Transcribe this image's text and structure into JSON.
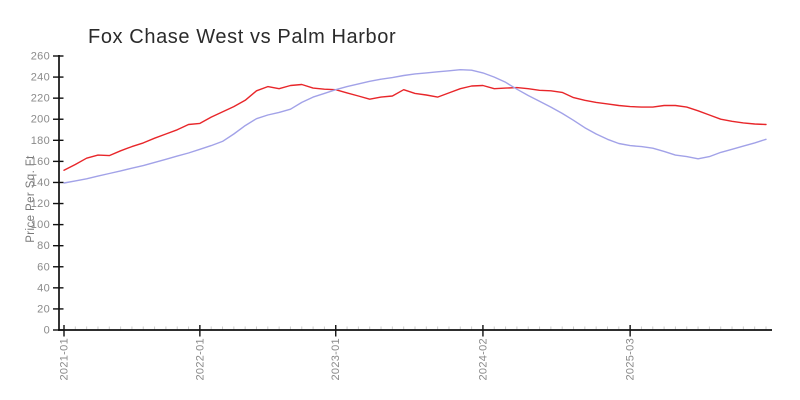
{
  "chart": {
    "title": "Fox Chase West vs Palm Harbor",
    "y_axis_label": "Price Per Sq. Ft"
  },
  "colors": {
    "axis": "#111111",
    "tick_label": "#8a8a8a",
    "minor_tick": "#cccccc",
    "title": "#2b2b2b",
    "ylabel_text": "#7a7a7a",
    "background": "#ffffff",
    "series_red": "#e8262a",
    "series_blue": "#a2a2e8"
  },
  "chart_data": {
    "type": "line",
    "title": "Fox Chase West vs Palm Harbor",
    "xlabel": "",
    "ylabel": "Price Per Sq. Ft",
    "ylim": [
      0,
      260
    ],
    "y_ticks": [
      0,
      20,
      40,
      60,
      80,
      100,
      120,
      140,
      160,
      180,
      200,
      220,
      240,
      260
    ],
    "x_tick_labels": [
      "2021-01",
      "2022-01",
      "2023-01",
      "2024-02",
      "2025-03"
    ],
    "x_tick_indices": [
      0,
      12,
      24,
      37,
      50
    ],
    "x_frequency": "monthly",
    "x_range": [
      "2021-01",
      "2026-03"
    ],
    "grid": false,
    "legend": "none",
    "series": [
      {
        "name": "Fox Chase West",
        "color": "#e8262a",
        "values": [
          151.5,
          157,
          163,
          166,
          165.5,
          170,
          174,
          177.5,
          182,
          186,
          190,
          195,
          196,
          202,
          207,
          212,
          218,
          227,
          231,
          229,
          232,
          233,
          229.5,
          228.5,
          228,
          225,
          222,
          219,
          221,
          222,
          228,
          224.5,
          223,
          221,
          225,
          229,
          231.5,
          232,
          229,
          229.5,
          230,
          229,
          227.5,
          227,
          225.5,
          220.5,
          218,
          216,
          214.5,
          213,
          212,
          211.5,
          211.5,
          213,
          213,
          211.5,
          208,
          204,
          200,
          198,
          196.5,
          195.5,
          195
        ]
      },
      {
        "name": "Palm Harbor",
        "color": "#a2a2e8",
        "values": [
          139.5,
          141.5,
          143.5,
          146,
          148.5,
          151,
          153.5,
          156,
          159,
          162,
          165,
          168,
          171.5,
          175,
          179,
          186,
          194,
          200.5,
          204,
          206.5,
          209.5,
          216,
          221,
          224.5,
          228,
          231,
          233.5,
          236,
          238,
          239.5,
          241.5,
          243,
          244,
          245,
          246,
          247,
          246.5,
          244,
          240,
          235,
          228.5,
          222.5,
          217,
          211.5,
          205.5,
          199,
          192,
          186,
          181,
          177,
          175,
          174,
          172.5,
          169.5,
          166,
          164.5,
          162.5,
          164.5,
          168.5,
          171.5,
          174.5,
          177.5,
          181
        ]
      }
    ]
  }
}
